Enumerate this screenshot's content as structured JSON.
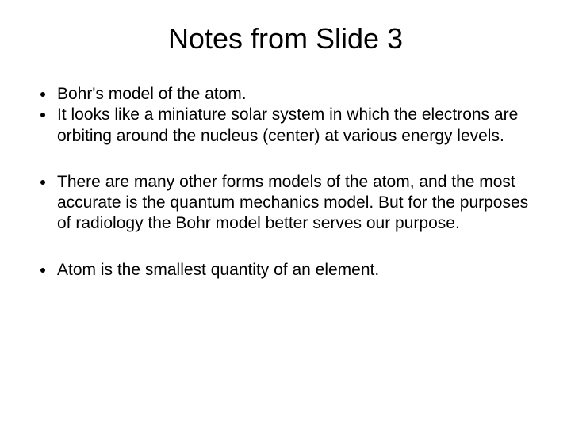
{
  "slide": {
    "title": "Notes from Slide 3",
    "title_fontsize": 36,
    "body_fontsize": 21,
    "background_color": "#ffffff",
    "text_color": "#000000",
    "groups": [
      {
        "items": [
          "Bohr's model of the atom.",
          "It looks like a miniature solar system in which the electrons are orbiting around the nucleus (center) at various energy levels."
        ]
      },
      {
        "items": [
          "There are many other forms models of the atom, and the most accurate is the quantum mechanics model. But for the purposes of radiology the Bohr model better serves our purpose."
        ]
      },
      {
        "items": [
          "Atom is the smallest quantity of an element."
        ]
      }
    ]
  }
}
